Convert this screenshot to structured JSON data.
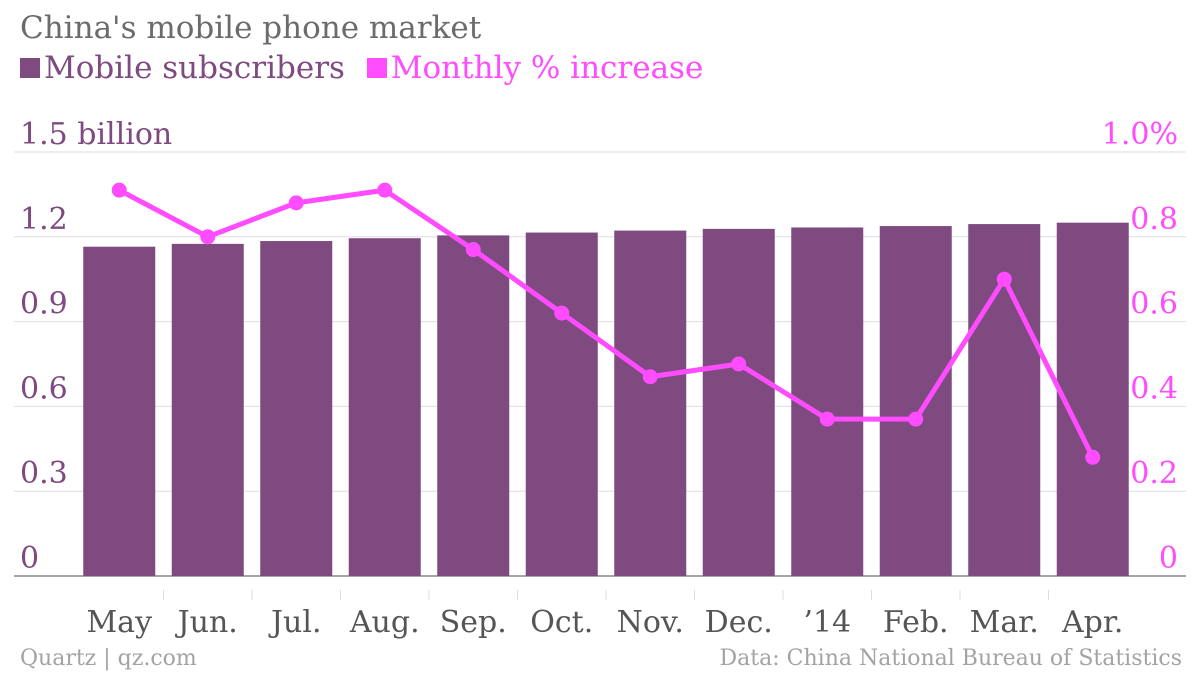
{
  "chart_data": {
    "type": "bar",
    "title": "China's mobile phone market",
    "categories": [
      "May",
      "Jun.",
      "Jul.",
      "Aug.",
      "Sep.",
      "Oct.",
      "Nov.",
      "Dec.",
      "’14",
      "Feb.",
      "Mar.",
      "Apr."
    ],
    "series": [
      {
        "name": "Mobile subscribers",
        "type": "bar",
        "axis": "left",
        "color": "#7e4a7f",
        "values": [
          1.165,
          1.175,
          1.185,
          1.195,
          1.205,
          1.215,
          1.222,
          1.228,
          1.233,
          1.238,
          1.245,
          1.25
        ]
      },
      {
        "name": "Monthly % increase",
        "type": "line",
        "axis": "right",
        "color": "#ff4cff",
        "values": [
          0.91,
          0.8,
          0.88,
          0.91,
          0.77,
          0.62,
          0.47,
          0.5,
          0.37,
          0.37,
          0.7,
          0.28
        ]
      }
    ],
    "y_left": {
      "ylim": [
        0,
        1.5
      ],
      "ticks": [
        "0",
        "0.3",
        "0.6",
        "0.9",
        "1.2",
        "1.5 billion"
      ]
    },
    "y_right": {
      "ylim": [
        0,
        1.0
      ],
      "ticks": [
        "0",
        "0.2",
        "0.4",
        "0.6",
        "0.8",
        "1.0%"
      ]
    },
    "grid": true,
    "legend": "top-left"
  },
  "footer": {
    "source_left": "Quartz | qz.com",
    "source_right": "Data: China National Bureau of Statistics"
  }
}
